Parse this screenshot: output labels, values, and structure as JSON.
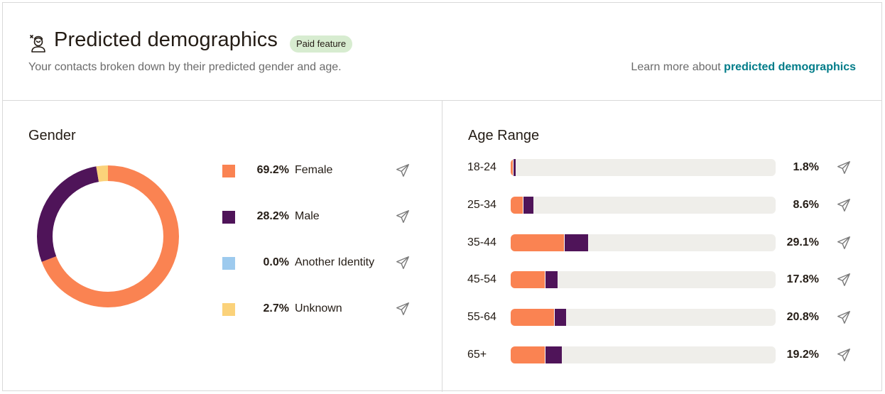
{
  "header": {
    "title": "Predicted demographics",
    "badge": "Paid feature",
    "subtitle": "Your contacts broken down by their predicted gender and age.",
    "learn_prefix": "Learn more about ",
    "learn_link": "predicted demographics",
    "icon": "demographics-person-icon"
  },
  "colors": {
    "female": "#fa8352",
    "male": "#4f1459",
    "another": "#9dcaee",
    "unknown": "#fbd27a",
    "track": "#efeeea",
    "link": "#007c89"
  },
  "chart_data": [
    {
      "type": "pie",
      "variant": "donut",
      "title": "Gender",
      "categories": [
        "Female",
        "Male",
        "Another Identity",
        "Unknown"
      ],
      "values": [
        69.2,
        28.2,
        0.0,
        2.7
      ],
      "labels": [
        "69.2%",
        "28.2%",
        "0.0%",
        "2.7%"
      ],
      "colors": [
        "#fa8352",
        "#4f1459",
        "#9dcaee",
        "#fbd27a"
      ],
      "legend": "right",
      "row_action_icon": "send-icon"
    },
    {
      "type": "bar",
      "orientation": "horizontal",
      "stacked": true,
      "title": "Age Range",
      "categories": [
        "18-24",
        "25-34",
        "35-44",
        "45-54",
        "55-64",
        "65+"
      ],
      "totals": [
        1.8,
        8.6,
        29.1,
        17.8,
        20.8,
        19.2
      ],
      "labels": [
        "1.8%",
        "8.6%",
        "29.1%",
        "17.8%",
        "20.8%",
        "19.2%"
      ],
      "series": [
        {
          "color": "#fa8352",
          "values": [
            0.9,
            4.6,
            20.2,
            12.9,
            16.4,
            12.8
          ]
        },
        {
          "color": "#4f1459",
          "values": [
            0.9,
            4.0,
            8.9,
            4.9,
            4.4,
            6.4
          ]
        }
      ],
      "xlim": [
        0,
        100
      ],
      "row_action_icon": "send-icon"
    }
  ]
}
